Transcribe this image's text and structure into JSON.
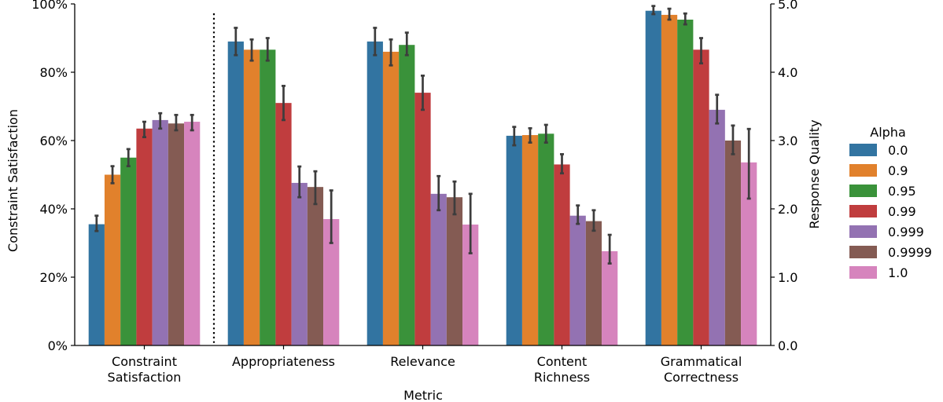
{
  "chart_data": {
    "type": "bar",
    "xlabel": "Metric",
    "ylabel_left": "Constraint Satisfaction",
    "ylabel_right": "Response Quality",
    "left_axis": {
      "ylim": [
        0,
        100
      ],
      "ticks": [
        0,
        20,
        40,
        60,
        80,
        100
      ],
      "tick_labels": [
        "0%",
        "20%",
        "40%",
        "60%",
        "80%",
        "100%"
      ]
    },
    "right_axis": {
      "ylim": [
        0,
        5
      ],
      "ticks": [
        0,
        1,
        2,
        3,
        4,
        5
      ],
      "tick_labels": [
        "0.0",
        "1.0",
        "2.0",
        "3.0",
        "4.0",
        "5.0"
      ]
    },
    "categories": [
      {
        "lines": [
          "Constraint",
          "Satisfaction"
        ],
        "axis": "left"
      },
      {
        "lines": [
          "Appropriateness"
        ],
        "axis": "right"
      },
      {
        "lines": [
          "Relevance"
        ],
        "axis": "right"
      },
      {
        "lines": [
          "Content",
          "Richness"
        ],
        "axis": "right"
      },
      {
        "lines": [
          "Grammatical",
          "Correctness"
        ],
        "axis": "right"
      }
    ],
    "legend": {
      "title": "Alpha",
      "position": "outside-right"
    },
    "separator": "dotted vertical line between Constraint Satisfaction and Appropriateness",
    "series": [
      {
        "name": "0.0",
        "color": "#3274a1",
        "values": [
          35.5,
          4.45,
          4.45,
          3.07,
          4.9
        ],
        "err_low": [
          33.5,
          4.25,
          4.25,
          2.93,
          4.85
        ],
        "err_high": [
          38.0,
          4.65,
          4.65,
          3.2,
          4.97
        ]
      },
      {
        "name": "0.9",
        "color": "#e1812c",
        "values": [
          50.0,
          4.33,
          4.3,
          3.08,
          4.84
        ],
        "err_low": [
          47.5,
          4.17,
          4.1,
          2.97,
          4.77
        ],
        "err_high": [
          52.5,
          4.48,
          4.48,
          3.18,
          4.93
        ]
      },
      {
        "name": "0.95",
        "color": "#3a923a",
        "values": [
          55.0,
          4.33,
          4.4,
          3.1,
          4.77
        ],
        "err_low": [
          52.5,
          4.17,
          4.25,
          2.97,
          4.7
        ],
        "err_high": [
          57.5,
          4.5,
          4.58,
          3.23,
          4.86
        ]
      },
      {
        "name": "0.99",
        "color": "#c03d3e",
        "values": [
          63.5,
          3.55,
          3.7,
          2.65,
          4.33
        ],
        "err_low": [
          61.0,
          3.3,
          3.45,
          2.52,
          4.13
        ],
        "err_high": [
          65.5,
          3.8,
          3.95,
          2.8,
          4.5
        ]
      },
      {
        "name": "0.999",
        "color": "#9372b2",
        "values": [
          66.0,
          2.38,
          2.22,
          1.9,
          3.45
        ],
        "err_low": [
          63.5,
          2.17,
          1.98,
          1.78,
          3.25
        ],
        "err_high": [
          68.0,
          2.62,
          2.48,
          2.05,
          3.67
        ]
      },
      {
        "name": "0.9999",
        "color": "#845b53",
        "values": [
          65.0,
          2.32,
          2.17,
          1.82,
          3.0
        ],
        "err_low": [
          63.0,
          2.07,
          1.92,
          1.68,
          2.8
        ],
        "err_high": [
          67.5,
          2.55,
          2.4,
          1.98,
          3.22
        ]
      },
      {
        "name": "1.0",
        "color": "#d684bd",
        "values": [
          65.5,
          1.85,
          1.77,
          1.38,
          2.68
        ],
        "err_low": [
          63.0,
          1.5,
          1.35,
          1.2,
          2.15
        ],
        "err_high": [
          67.5,
          2.27,
          2.22,
          1.62,
          3.17
        ]
      }
    ]
  }
}
